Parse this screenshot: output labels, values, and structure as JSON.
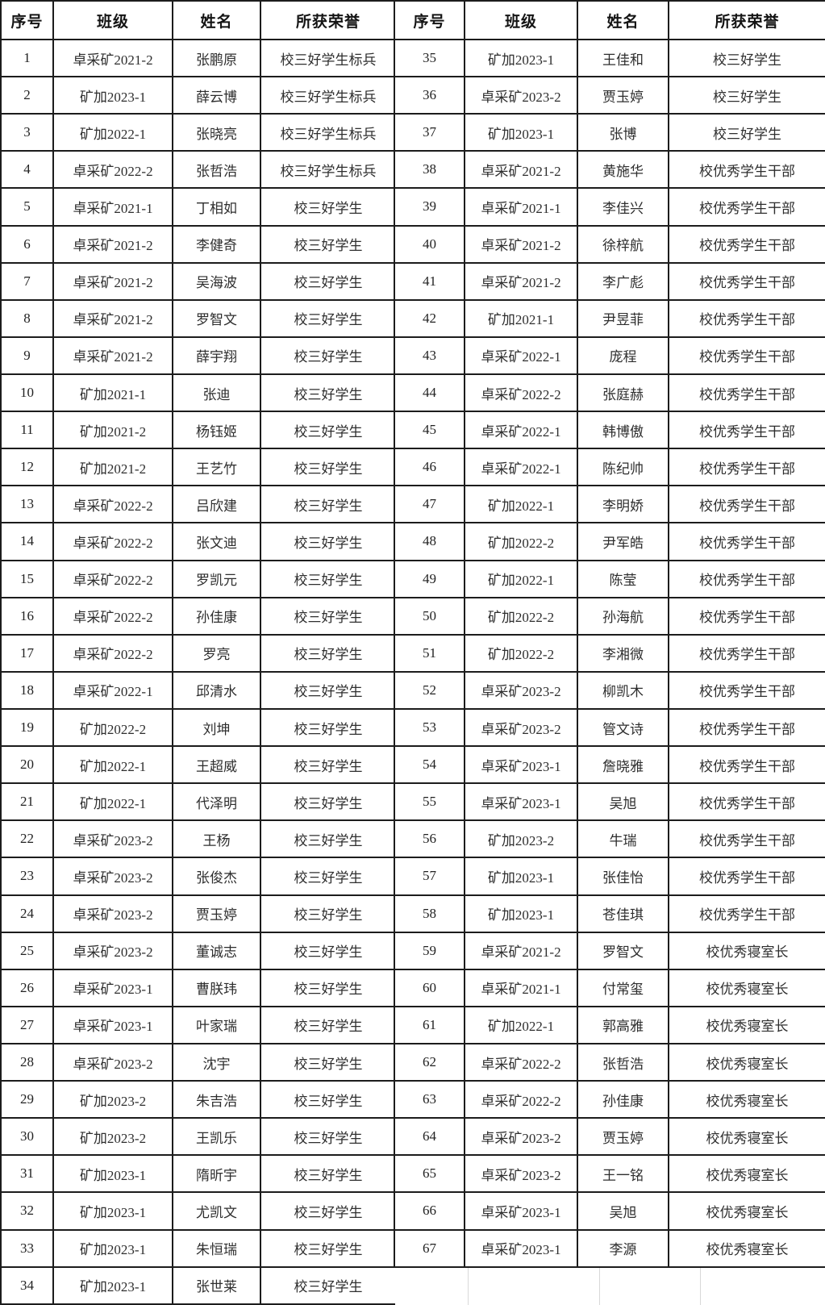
{
  "table": {
    "headers": [
      "序号",
      "班级",
      "姓名",
      "所获荣誉"
    ],
    "left_rows": [
      {
        "no": "1",
        "class": "卓采矿2021-2",
        "name": "张鹏原",
        "honor": "校三好学生标兵"
      },
      {
        "no": "2",
        "class": "矿加2023-1",
        "name": "薛云博",
        "honor": "校三好学生标兵"
      },
      {
        "no": "3",
        "class": "矿加2022-1",
        "name": "张晓亮",
        "honor": "校三好学生标兵"
      },
      {
        "no": "4",
        "class": "卓采矿2022-2",
        "name": "张哲浩",
        "honor": "校三好学生标兵"
      },
      {
        "no": "5",
        "class": "卓采矿2021-1",
        "name": "丁相如",
        "honor": "校三好学生"
      },
      {
        "no": "6",
        "class": "卓采矿2021-2",
        "name": "李健奇",
        "honor": "校三好学生"
      },
      {
        "no": "7",
        "class": "卓采矿2021-2",
        "name": "吴海波",
        "honor": "校三好学生"
      },
      {
        "no": "8",
        "class": "卓采矿2021-2",
        "name": "罗智文",
        "honor": "校三好学生"
      },
      {
        "no": "9",
        "class": "卓采矿2021-2",
        "name": "薛宇翔",
        "honor": "校三好学生"
      },
      {
        "no": "10",
        "class": "矿加2021-1",
        "name": "张迪",
        "honor": "校三好学生"
      },
      {
        "no": "11",
        "class": "矿加2021-2",
        "name": "杨钰姬",
        "honor": "校三好学生"
      },
      {
        "no": "12",
        "class": "矿加2021-2",
        "name": "王艺竹",
        "honor": "校三好学生"
      },
      {
        "no": "13",
        "class": "卓采矿2022-2",
        "name": "吕欣建",
        "honor": "校三好学生"
      },
      {
        "no": "14",
        "class": "卓采矿2022-2",
        "name": "张文迪",
        "honor": "校三好学生"
      },
      {
        "no": "15",
        "class": "卓采矿2022-2",
        "name": "罗凯元",
        "honor": "校三好学生"
      },
      {
        "no": "16",
        "class": "卓采矿2022-2",
        "name": "孙佳康",
        "honor": "校三好学生"
      },
      {
        "no": "17",
        "class": "卓采矿2022-2",
        "name": "罗亮",
        "honor": "校三好学生"
      },
      {
        "no": "18",
        "class": "卓采矿2022-1",
        "name": "邱清水",
        "honor": "校三好学生"
      },
      {
        "no": "19",
        "class": "矿加2022-2",
        "name": "刘坤",
        "honor": "校三好学生"
      },
      {
        "no": "20",
        "class": "矿加2022-1",
        "name": "王超威",
        "honor": "校三好学生"
      },
      {
        "no": "21",
        "class": "矿加2022-1",
        "name": "代泽明",
        "honor": "校三好学生"
      },
      {
        "no": "22",
        "class": "卓采矿2023-2",
        "name": "王杨",
        "honor": "校三好学生"
      },
      {
        "no": "23",
        "class": "卓采矿2023-2",
        "name": "张俊杰",
        "honor": "校三好学生"
      },
      {
        "no": "24",
        "class": "卓采矿2023-2",
        "name": "贾玉婷",
        "honor": "校三好学生"
      },
      {
        "no": "25",
        "class": "卓采矿2023-2",
        "name": "董诚志",
        "honor": "校三好学生"
      },
      {
        "no": "26",
        "class": "卓采矿2023-1",
        "name": "曹朕玮",
        "honor": "校三好学生"
      },
      {
        "no": "27",
        "class": "卓采矿2023-1",
        "name": "叶家瑞",
        "honor": "校三好学生"
      },
      {
        "no": "28",
        "class": "卓采矿2023-2",
        "name": "沈宇",
        "honor": "校三好学生"
      },
      {
        "no": "29",
        "class": "矿加2023-2",
        "name": "朱吉浩",
        "honor": "校三好学生"
      },
      {
        "no": "30",
        "class": "矿加2023-2",
        "name": "王凯乐",
        "honor": "校三好学生"
      },
      {
        "no": "31",
        "class": "矿加2023-1",
        "name": "隋昕宇",
        "honor": "校三好学生"
      },
      {
        "no": "32",
        "class": "矿加2023-1",
        "name": "尤凯文",
        "honor": "校三好学生"
      },
      {
        "no": "33",
        "class": "矿加2023-1",
        "name": "朱恒瑞",
        "honor": "校三好学生"
      },
      {
        "no": "34",
        "class": "矿加2023-1",
        "name": "张世莱",
        "honor": "校三好学生"
      }
    ],
    "right_rows": [
      {
        "no": "35",
        "class": "矿加2023-1",
        "name": "王佳和",
        "honor": "校三好学生"
      },
      {
        "no": "36",
        "class": "卓采矿2023-2",
        "name": "贾玉婷",
        "honor": "校三好学生"
      },
      {
        "no": "37",
        "class": "矿加2023-1",
        "name": "张博",
        "honor": "校三好学生"
      },
      {
        "no": "38",
        "class": "卓采矿2021-2",
        "name": "黄施华",
        "honor": "校优秀学生干部"
      },
      {
        "no": "39",
        "class": "卓采矿2021-1",
        "name": "李佳兴",
        "honor": "校优秀学生干部"
      },
      {
        "no": "40",
        "class": "卓采矿2021-2",
        "name": "徐梓航",
        "honor": "校优秀学生干部"
      },
      {
        "no": "41",
        "class": "卓采矿2021-2",
        "name": "李广彪",
        "honor": "校优秀学生干部"
      },
      {
        "no": "42",
        "class": "矿加2021-1",
        "name": "尹昱菲",
        "honor": "校优秀学生干部"
      },
      {
        "no": "43",
        "class": "卓采矿2022-1",
        "name": "庞程",
        "honor": "校优秀学生干部"
      },
      {
        "no": "44",
        "class": "卓采矿2022-2",
        "name": "张庭赫",
        "honor": "校优秀学生干部"
      },
      {
        "no": "45",
        "class": "卓采矿2022-1",
        "name": "韩博傲",
        "honor": "校优秀学生干部"
      },
      {
        "no": "46",
        "class": "卓采矿2022-1",
        "name": "陈纪帅",
        "honor": "校优秀学生干部"
      },
      {
        "no": "47",
        "class": "矿加2022-1",
        "name": "李明娇",
        "honor": "校优秀学生干部"
      },
      {
        "no": "48",
        "class": "矿加2022-2",
        "name": "尹军皓",
        "honor": "校优秀学生干部"
      },
      {
        "no": "49",
        "class": "矿加2022-1",
        "name": "陈莹",
        "honor": "校优秀学生干部"
      },
      {
        "no": "50",
        "class": "矿加2022-2",
        "name": "孙海航",
        "honor": "校优秀学生干部"
      },
      {
        "no": "51",
        "class": "矿加2022-2",
        "name": "李湘微",
        "honor": "校优秀学生干部"
      },
      {
        "no": "52",
        "class": "卓采矿2023-2",
        "name": "柳凯木",
        "honor": "校优秀学生干部"
      },
      {
        "no": "53",
        "class": "卓采矿2023-2",
        "name": "管文诗",
        "honor": "校优秀学生干部"
      },
      {
        "no": "54",
        "class": "卓采矿2023-1",
        "name": "詹晓雅",
        "honor": "校优秀学生干部"
      },
      {
        "no": "55",
        "class": "卓采矿2023-1",
        "name": "吴旭",
        "honor": "校优秀学生干部"
      },
      {
        "no": "56",
        "class": "矿加2023-2",
        "name": "牛瑞",
        "honor": "校优秀学生干部"
      },
      {
        "no": "57",
        "class": "矿加2023-1",
        "name": "张佳怡",
        "honor": "校优秀学生干部"
      },
      {
        "no": "58",
        "class": "矿加2023-1",
        "name": "苍佳琪",
        "honor": "校优秀学生干部"
      },
      {
        "no": "59",
        "class": "卓采矿2021-2",
        "name": "罗智文",
        "honor": "校优秀寝室长"
      },
      {
        "no": "60",
        "class": "卓采矿2021-1",
        "name": "付常玺",
        "honor": "校优秀寝室长"
      },
      {
        "no": "61",
        "class": "矿加2022-1",
        "name": "郭高雅",
        "honor": "校优秀寝室长"
      },
      {
        "no": "62",
        "class": "卓采矿2022-2",
        "name": "张哲浩",
        "honor": "校优秀寝室长"
      },
      {
        "no": "63",
        "class": "卓采矿2022-2",
        "name": "孙佳康",
        "honor": "校优秀寝室长"
      },
      {
        "no": "64",
        "class": "卓采矿2023-2",
        "name": "贾玉婷",
        "honor": "校优秀寝室长"
      },
      {
        "no": "65",
        "class": "卓采矿2023-2",
        "name": "王一铭",
        "honor": "校优秀寝室长"
      },
      {
        "no": "66",
        "class": "卓采矿2023-1",
        "name": "吴旭",
        "honor": "校优秀寝室长"
      },
      {
        "no": "67",
        "class": "卓采矿2023-1",
        "name": "李源",
        "honor": "校优秀寝室长"
      }
    ]
  },
  "colors": {
    "border": "#1c1c1c",
    "text": "#2e2e2e",
    "header_text": "#141414",
    "faint_grid": "#d8d8d8",
    "background": "#ffffff"
  }
}
